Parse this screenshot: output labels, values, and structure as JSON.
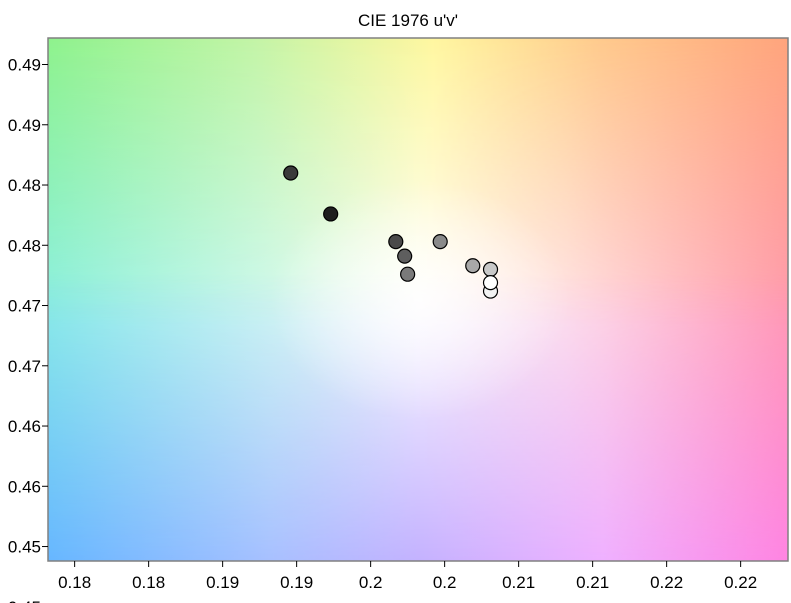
{
  "chart_data": {
    "type": "scatter",
    "title": "CIE 1976 u'v'",
    "xlabel": "",
    "ylabel": "",
    "xlim": [
      0.1762,
      0.2262
    ],
    "ylim": [
      0.4528,
      0.4962
    ],
    "x_ticks": [
      0.178,
      0.183,
      0.188,
      0.193,
      0.198,
      0.203,
      0.208,
      0.213,
      0.218,
      0.223
    ],
    "x_tick_labels": [
      "0.18",
      "0.18",
      "0.19",
      "0.19",
      "0.2",
      "0.2",
      "0.21",
      "0.21",
      "0.22",
      "0.22"
    ],
    "y_ticks": [
      0.494,
      0.489,
      0.484,
      0.479,
      0.474,
      0.469,
      0.464,
      0.459,
      0.454,
      0.449
    ],
    "y_tick_labels": [
      "0.49",
      "0.49",
      "0.48",
      "0.48",
      "0.47",
      "0.47",
      "0.46",
      "0.46",
      "0.45",
      "0.45"
    ],
    "grid": false,
    "background": "CIE u'v' chromaticity color field",
    "colors": {
      "frame": "#808080",
      "point_stroke": "#000000"
    },
    "points": [
      {
        "x": 0.1926,
        "y": 0.485,
        "fill": "#3a3a3a"
      },
      {
        "x": 0.1953,
        "y": 0.4816,
        "fill": "#1e1e1e"
      },
      {
        "x": 0.1997,
        "y": 0.4793,
        "fill": "#4a4a4a"
      },
      {
        "x": 0.2027,
        "y": 0.4793,
        "fill": "#8a8a8a"
      },
      {
        "x": 0.2003,
        "y": 0.4781,
        "fill": "#5e5e5e"
      },
      {
        "x": 0.2005,
        "y": 0.4766,
        "fill": "#7a7a7a"
      },
      {
        "x": 0.2049,
        "y": 0.4773,
        "fill": "#a8a8a8"
      },
      {
        "x": 0.2061,
        "y": 0.477,
        "fill": "#c8c8c8"
      },
      {
        "x": 0.2061,
        "y": 0.4752,
        "fill": "#f2f2f2"
      },
      {
        "x": 0.2061,
        "y": 0.4759,
        "fill": "#ffffff"
      }
    ]
  }
}
